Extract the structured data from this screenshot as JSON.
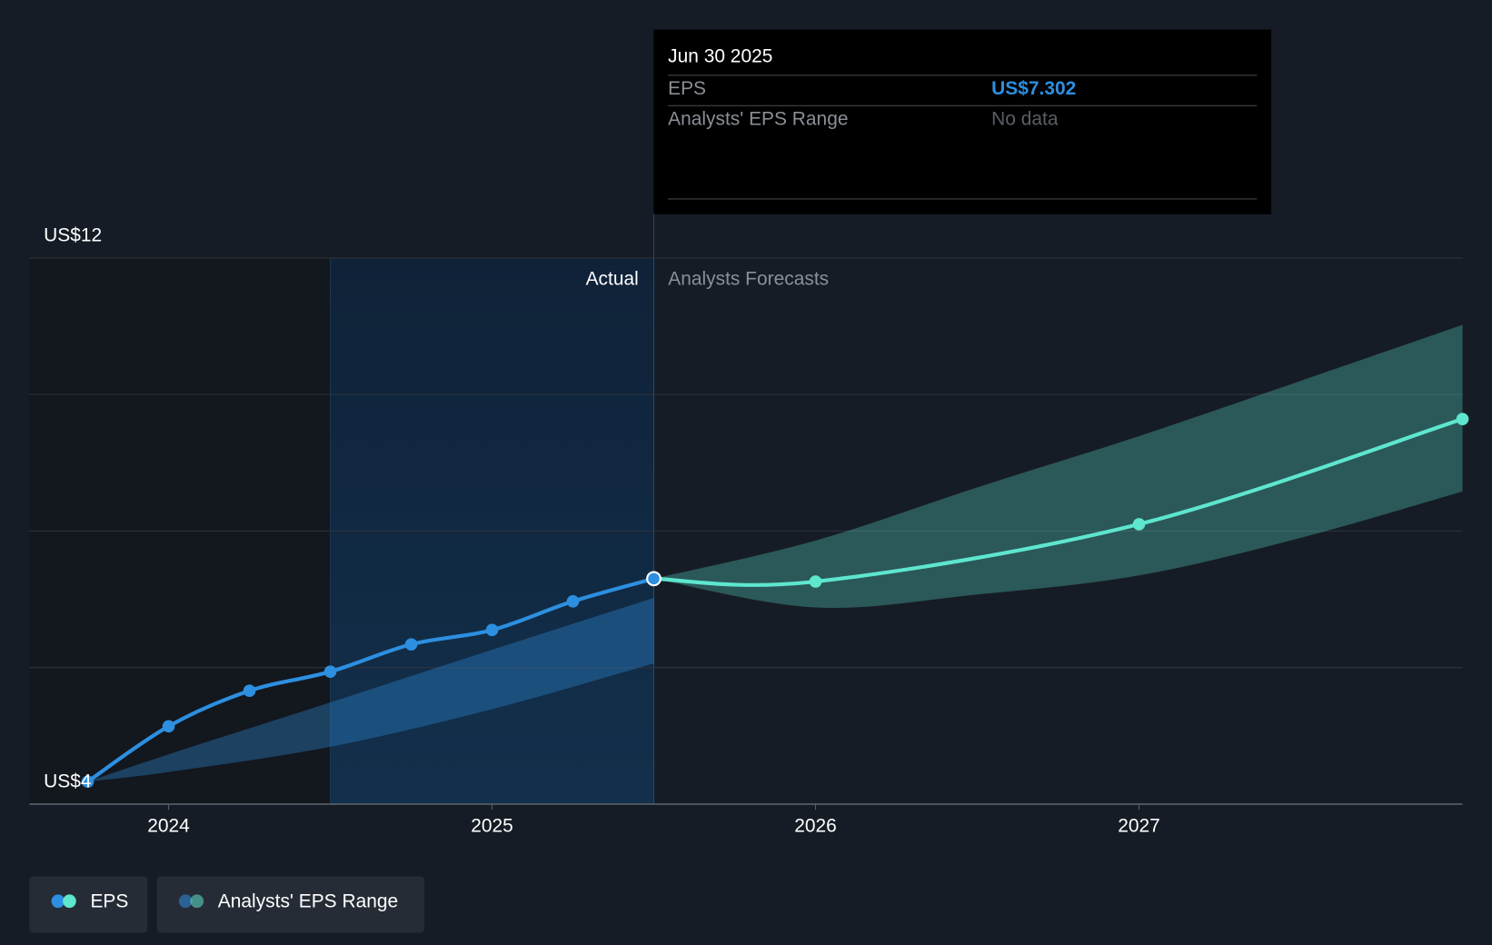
{
  "chart_data": {
    "type": "line",
    "xlim": [
      2023.57,
      2028.0
    ],
    "xticks": [
      2024,
      2025,
      2026,
      2027
    ],
    "ylim": [
      4,
      12
    ],
    "yticks": [
      {
        "value": 4,
        "label": "US$4"
      },
      {
        "value": 6,
        "label": null
      },
      {
        "value": 8,
        "label": null
      },
      {
        "value": 10,
        "label": null
      },
      {
        "value": 12,
        "label": "US$12"
      }
    ],
    "grid": true,
    "divider_x": 2025.5,
    "shade_start_x": 2024.5,
    "actual_label": "Actual",
    "forecast_label": "Analysts Forecasts",
    "series": [
      {
        "name": "EPS",
        "color": "#2d8fe0",
        "forecast_color": "#5ee6cf",
        "x": [
          2023.75,
          2024.0,
          2024.25,
          2024.5,
          2024.75,
          2025.0,
          2025.25,
          2025.5,
          2026.0,
          2027.0,
          2028.0
        ],
        "values": [
          4.33,
          5.14,
          5.66,
          5.94,
          6.34,
          6.55,
          6.97,
          7.302,
          7.26,
          8.1,
          9.64
        ]
      }
    ],
    "range": {
      "name": "Analysts' EPS Range",
      "color": "#2d8fe0",
      "forecast_color": "#5ee6cf",
      "parts": [
        {
          "x": [
            2023.75,
            2024.0,
            2024.5,
            2025.0,
            2025.5
          ],
          "low": [
            4.33,
            4.47,
            4.84,
            5.39,
            6.06
          ],
          "high": [
            4.33,
            4.73,
            5.49,
            6.26,
            7.02
          ]
        },
        {
          "x": [
            2025.5,
            2026.0,
            2026.5,
            2027.0,
            2027.5,
            2028.0
          ],
          "low": [
            7.302,
            6.88,
            7.07,
            7.35,
            7.9,
            8.58
          ],
          "high": [
            7.302,
            7.86,
            8.64,
            9.39,
            10.2,
            11.02
          ]
        }
      ]
    },
    "tooltip": {
      "date": "Jun 30 2025",
      "rows": [
        {
          "label": "EPS",
          "value": "US$7.302"
        },
        {
          "label": "Analysts' EPS Range",
          "value": "No data"
        }
      ]
    }
  }
}
